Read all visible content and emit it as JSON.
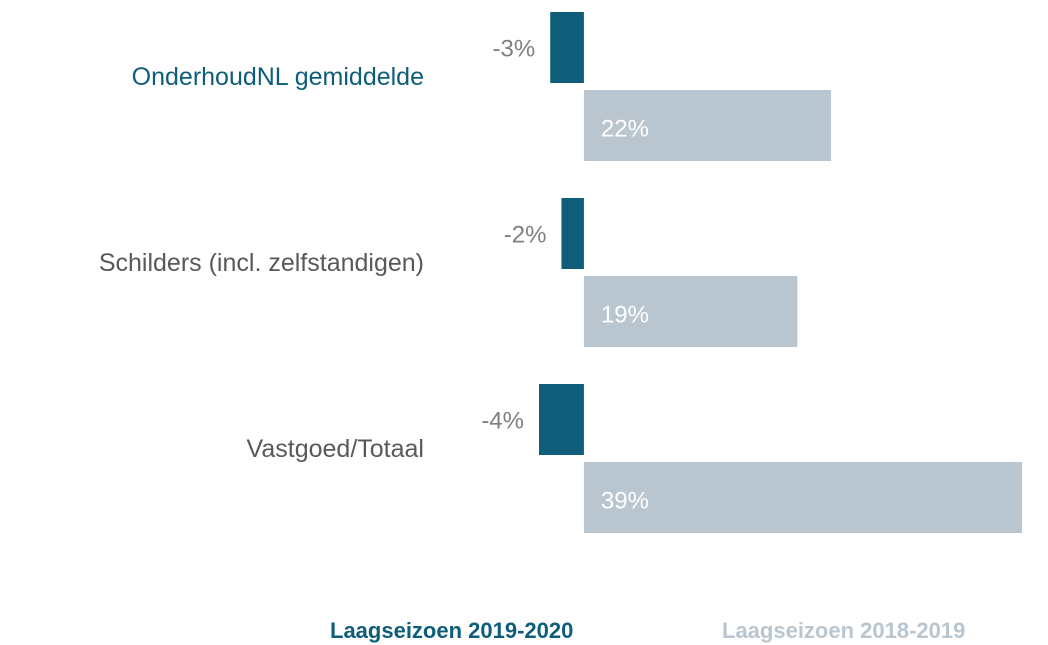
{
  "chart_data": {
    "type": "hbar",
    "categories": [
      "OnderhoudNL gemiddelde",
      "Schilders (incl. zelfstandigen)",
      "Vastgoed/Totaal"
    ],
    "category_colors": [
      "#0e5e7a",
      "#595959",
      "#595959"
    ],
    "series": [
      {
        "name": "Laagseizoen 2019-2020",
        "color": "#0e5e7a",
        "values": [
          -3,
          -2,
          -4
        ],
        "value_labels": [
          "-3%",
          "-2%",
          "-4%"
        ]
      },
      {
        "name": "Laagseizoen 2018-2019",
        "color": "#b9c6d0",
        "values": [
          22,
          19,
          39
        ],
        "value_labels": [
          "22%",
          "19%",
          "39%"
        ]
      }
    ]
  }
}
